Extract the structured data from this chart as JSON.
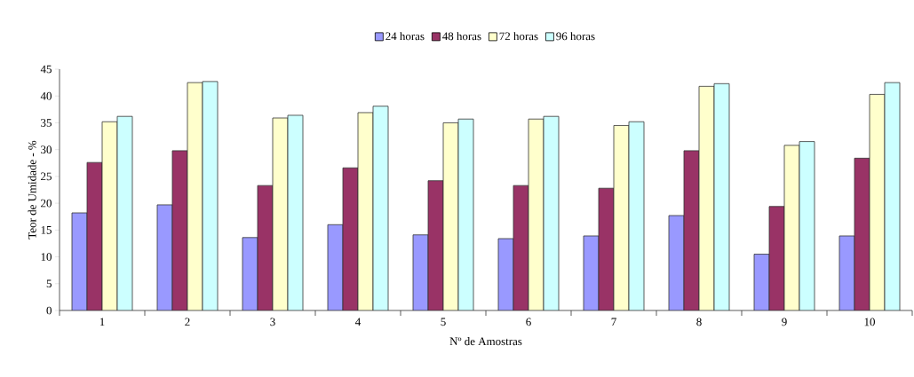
{
  "chart_data": {
    "type": "bar",
    "xlabel": "Nº de Amostras",
    "ylabel": "Teor de Umidade - %",
    "categories": [
      "1",
      "2",
      "3",
      "4",
      "5",
      "6",
      "7",
      "8",
      "9",
      "10"
    ],
    "series": [
      {
        "name": "24 horas",
        "color": "#9999ff",
        "values": [
          18.2,
          19.7,
          13.6,
          16.0,
          14.1,
          13.4,
          13.9,
          17.7,
          10.5,
          13.9
        ]
      },
      {
        "name": "48 horas",
        "color": "#993366",
        "values": [
          27.6,
          29.8,
          23.3,
          26.6,
          24.2,
          23.3,
          22.8,
          29.8,
          19.4,
          28.4
        ]
      },
      {
        "name": "72 horas",
        "color": "#ffffcc",
        "values": [
          35.2,
          42.5,
          35.9,
          36.9,
          35.0,
          35.7,
          34.5,
          41.8,
          30.8,
          40.3
        ]
      },
      {
        "name": "96 horas",
        "color": "#ccffff",
        "values": [
          36.2,
          42.7,
          36.4,
          38.1,
          35.7,
          36.2,
          35.2,
          42.3,
          31.5,
          42.5
        ]
      }
    ],
    "ylim": [
      0,
      45
    ],
    "yticks": [
      0,
      5,
      10,
      15,
      20,
      25,
      30,
      35,
      40,
      45
    ],
    "grid": false,
    "legend": "top"
  }
}
